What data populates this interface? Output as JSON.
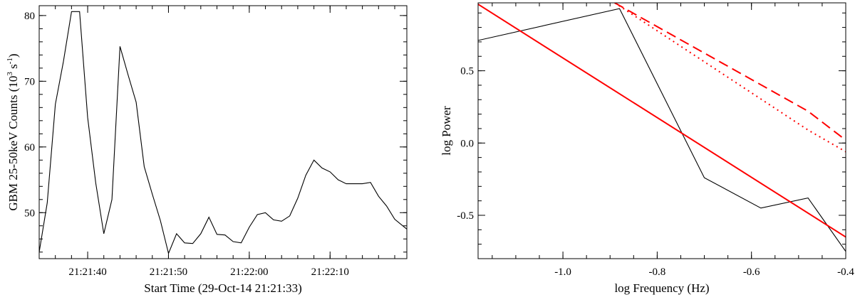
{
  "chart_data": [
    {
      "type": "line",
      "xlabel": "Start Time (29-Oct-14 21:21:33)",
      "ylabel_parts": {
        "main": "GBM 25-50keV Counts (10",
        "sup1": "3",
        "mid": " s",
        "sup2": "-1",
        "end": ")"
      },
      "xlim": [
        34,
        79.5
      ],
      "ylim": [
        43,
        81.5
      ],
      "x_ticks": [
        {
          "value": 40,
          "label": "21:21:40"
        },
        {
          "value": 50,
          "label": "21:21:50"
        },
        {
          "value": 60,
          "label": "21:22:00"
        },
        {
          "value": 70,
          "label": "21:22:10"
        }
      ],
      "x_minor_step": 2,
      "y_ticks": [
        {
          "value": 50,
          "label": "50"
        },
        {
          "value": 60,
          "label": "60"
        },
        {
          "value": 70,
          "label": "70"
        },
        {
          "value": 80,
          "label": "80"
        }
      ],
      "y_minor_step": 2,
      "series": [
        {
          "color": "#000000",
          "x": [
            34.0,
            35.0,
            36.0,
            37.0,
            38.0,
            39.0,
            40.0,
            41.0,
            42.0,
            43.0,
            44.0,
            45.0,
            46.0,
            47.0,
            48.0,
            49.0,
            50.0,
            51.0,
            52.0,
            53.0,
            54.0,
            55.0,
            56.0,
            57.0,
            58.0,
            59.0,
            60.0,
            61.0,
            62.0,
            63.0,
            64.0,
            65.0,
            66.0,
            67.0,
            68.0,
            69.0,
            70.0,
            71.0,
            72.0,
            73.0,
            74.0,
            75.0,
            76.0,
            77.0,
            78.0,
            79.0,
            79.5
          ],
          "y": [
            44.0,
            51.5,
            66.5,
            73.0,
            80.6,
            80.6,
            64.5,
            54.5,
            46.8,
            52.0,
            75.3,
            71.0,
            66.8,
            57.0,
            52.8,
            48.8,
            43.8,
            46.8,
            45.4,
            45.3,
            46.8,
            49.3,
            46.7,
            46.6,
            45.6,
            45.4,
            47.8,
            49.7,
            50.0,
            48.9,
            48.7,
            49.5,
            52.2,
            55.7,
            58.0,
            56.8,
            56.2,
            55.0,
            54.4,
            54.4,
            54.4,
            54.6,
            52.5,
            51.0,
            49.0,
            48.0,
            47.5
          ]
        }
      ]
    },
    {
      "type": "line",
      "xlabel": "log Frequency (Hz)",
      "ylabel": "log Power",
      "xlim": [
        -1.18,
        -0.4
      ],
      "ylim": [
        -0.8,
        0.97
      ],
      "x_ticks": [
        {
          "value": -1.0,
          "label": "-1.0"
        },
        {
          "value": -0.8,
          "label": "-0.8"
        },
        {
          "value": -0.6,
          "label": "-0.6"
        },
        {
          "value": -0.4,
          "label": "-0.4"
        }
      ],
      "x_minor_step": 0.05,
      "y_ticks": [
        {
          "value": -0.5,
          "label": "-0.5"
        },
        {
          "value": 0.0,
          "label": "0.0"
        },
        {
          "value": 0.5,
          "label": "0.5"
        }
      ],
      "y_minor_step": 0.1,
      "series": [
        {
          "style": "solid",
          "color": "#000000",
          "x": [
            -1.18,
            -0.88,
            -0.7,
            -0.58,
            -0.48,
            -0.4
          ],
          "y": [
            0.71,
            0.93,
            -0.24,
            -0.45,
            -0.38,
            -0.75
          ]
        },
        {
          "style": "solid",
          "color": "#ff0000",
          "x": [
            -1.18,
            -0.4
          ],
          "y": [
            0.96,
            -0.65
          ]
        },
        {
          "style": "dashed",
          "color": "#ff0000",
          "x": [
            -0.89,
            -0.48,
            -0.4
          ],
          "y": [
            0.97,
            0.22,
            0.02
          ]
        },
        {
          "style": "dotted",
          "color": "#ff0000",
          "x": [
            -0.89,
            -0.48,
            -0.4
          ],
          "y": [
            0.97,
            0.09,
            -0.06
          ]
        }
      ]
    }
  ]
}
